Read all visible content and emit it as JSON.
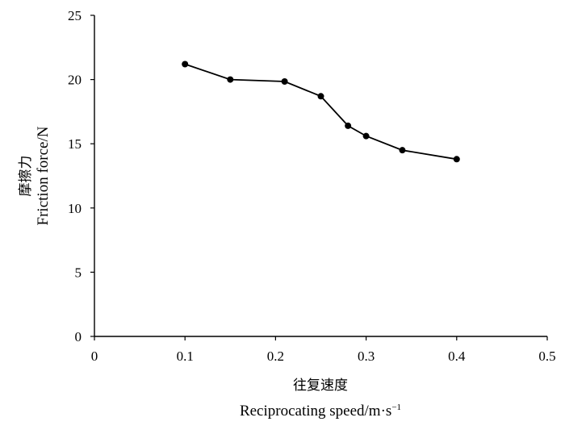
{
  "chart_data": {
    "type": "line",
    "x": [
      0.1,
      0.15,
      0.21,
      0.25,
      0.28,
      0.3,
      0.34,
      0.4
    ],
    "series": [
      {
        "values": [
          21.2,
          20.0,
          19.85,
          18.7,
          16.4,
          15.6,
          14.5,
          13.8
        ]
      }
    ],
    "xlabel_cn": "往复速度",
    "xlabel_en": "Reciprocating speed/m·s",
    "xlabel_en_sup": "−1",
    "ylabel_cn": "摩擦力",
    "ylabel_en": "Friction force/N",
    "xlim": [
      0,
      0.5
    ],
    "ylim": [
      0,
      25
    ],
    "xticks": [
      "0",
      "0.1",
      "0.2",
      "0.3",
      "0.4",
      "0.5"
    ],
    "yticks": [
      "0",
      "5",
      "10",
      "15",
      "20",
      "25"
    ],
    "marker": "circle",
    "line_color": "#000000",
    "grid": false
  }
}
